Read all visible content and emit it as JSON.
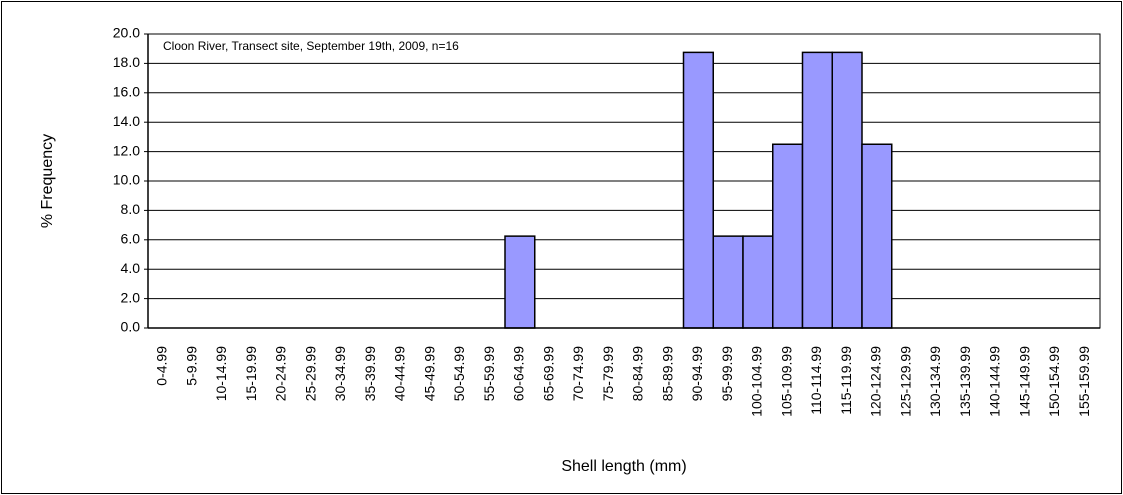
{
  "chart_data": {
    "type": "bar",
    "annotation": "Cloon River, Transect site, September 19th, 2009, n=16",
    "xlabel": "Shell length (mm)",
    "ylabel": "% Frequency",
    "categories": [
      "0-4.99",
      "5-9.99",
      "10-14.99",
      "15-19.99",
      "20-24.99",
      "25-29.99",
      "30-34.99",
      "35-39.99",
      "40-44.99",
      "45-49.99",
      "50-54.99",
      "55-59.99",
      "60-64.99",
      "65-69.99",
      "70-74.99",
      "75-79.99",
      "80-84.99",
      "85-89.99",
      "90-94.99",
      "95-99.99",
      "100-104.99",
      "105-109.99",
      "110-114.99",
      "115-119.99",
      "120-124.99",
      "125-129.99",
      "130-134.99",
      "135-139.99",
      "140-144.99",
      "145-149.99",
      "150-154.99",
      "155-159.99"
    ],
    "values": [
      0,
      0,
      0,
      0,
      0,
      0,
      0,
      0,
      0,
      0,
      0,
      0,
      6.25,
      0,
      0,
      0,
      0,
      0,
      18.75,
      6.25,
      6.25,
      12.5,
      18.75,
      18.75,
      12.5,
      0,
      0,
      0,
      0,
      0,
      0,
      0
    ],
    "color": "#9999ff",
    "ylim": [
      0,
      20
    ],
    "yticks": [
      {
        "value": 0,
        "label": "0.0"
      },
      {
        "value": 2,
        "label": "2.0"
      },
      {
        "value": 4,
        "label": "4.0"
      },
      {
        "value": 6,
        "label": "6.0"
      },
      {
        "value": 8,
        "label": "8.0"
      },
      {
        "value": 10,
        "label": "10.0"
      },
      {
        "value": 12,
        "label": "12.0"
      },
      {
        "value": 14,
        "label": "14.0"
      },
      {
        "value": 16,
        "label": "16.0"
      },
      {
        "value": 18,
        "label": "18.0"
      },
      {
        "value": 20,
        "label": "20.0"
      }
    ],
    "grid": true
  }
}
